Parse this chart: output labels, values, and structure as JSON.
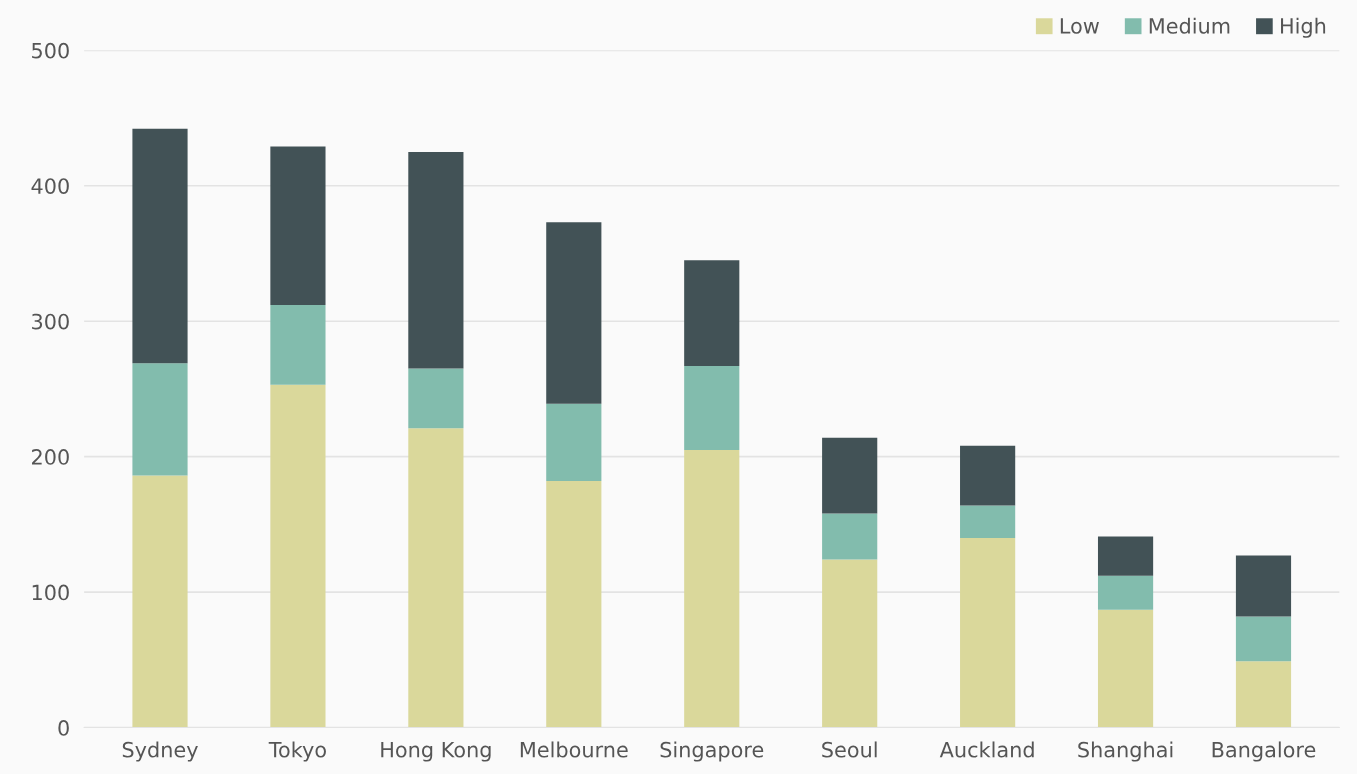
{
  "chart_data": {
    "type": "bar",
    "stacked": true,
    "categories": [
      "Sydney",
      "Tokyo",
      "Hong Kong",
      "Melbourne",
      "Singapore",
      "Seoul",
      "Auckland",
      "Shanghai",
      "Bangalore"
    ],
    "series": [
      {
        "name": "Low",
        "color": "#dad89b",
        "values": [
          186,
          253,
          221,
          182,
          205,
          124,
          140,
          87,
          49
        ]
      },
      {
        "name": "Medium",
        "color": "#82bcad",
        "values": [
          83,
          59,
          44,
          57,
          62,
          34,
          24,
          25,
          33
        ]
      },
      {
        "name": "High",
        "color": "#425256",
        "values": [
          173,
          117,
          160,
          134,
          78,
          56,
          44,
          29,
          45
        ]
      }
    ],
    "ylim": [
      0,
      500
    ],
    "yticks": [
      0,
      100,
      200,
      300,
      400,
      500
    ],
    "grid": "y",
    "legend": "top right"
  }
}
